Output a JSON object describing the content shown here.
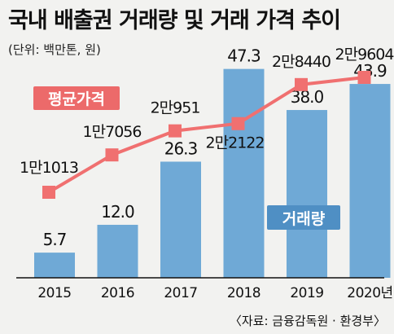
{
  "title": "국내 배출권 거래량 및 거래 가격 추이",
  "unit": "(단위: 백만톤, 원)",
  "source": "〈자료: 금융감독원 · 환경부〉",
  "colors": {
    "bar": "#6fa9d6",
    "line": "#f07070",
    "legend_bar_bg": "#4f8fc4",
    "legend_line_bg": "#ec6a6a"
  },
  "chart_data": {
    "type": "bar",
    "categories": [
      "2015",
      "2016",
      "2017",
      "2018",
      "2019",
      "2020년"
    ],
    "series": [
      {
        "name": "거래량",
        "type": "bar",
        "values": [
          5.7,
          12.0,
          26.3,
          47.3,
          38.0,
          43.9
        ],
        "labels": [
          "5.7",
          "12.0",
          "26.3",
          "47.3",
          "38.0",
          "43.9"
        ]
      },
      {
        "name": "평균가격",
        "type": "line",
        "values": [
          11013,
          17056,
          20951,
          22122,
          28440,
          29604
        ],
        "labels": [
          "1만1013",
          "1만7056",
          "2만951",
          "2만2122",
          "2만8440",
          "2만9604"
        ]
      }
    ]
  }
}
